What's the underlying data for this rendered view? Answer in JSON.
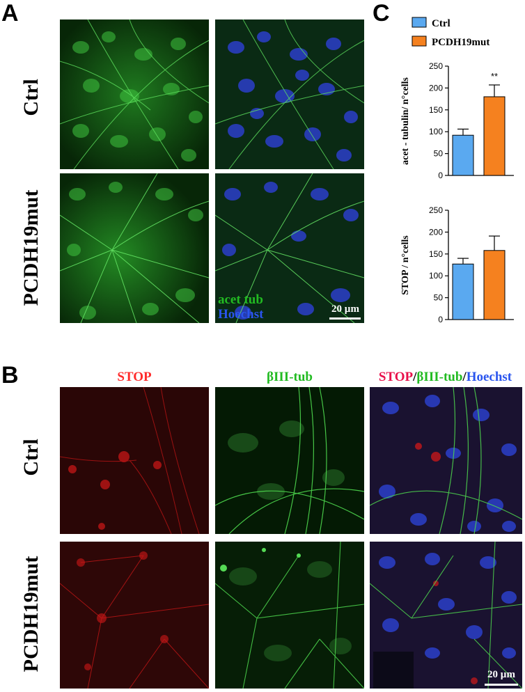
{
  "panels": {
    "a": "A",
    "b": "B",
    "c": "C"
  },
  "rows": {
    "ctrl": "Ctrl",
    "mut": "PCDH19mut"
  },
  "panel_a": {
    "overlay_line1": "acet tub",
    "overlay_line2": "Hoechst",
    "scale": "20 µm"
  },
  "panel_b": {
    "col_stop": "STOP",
    "col_tub": "βIII-tub",
    "col_merge_stop": "STOP",
    "col_merge_sep1": "/",
    "col_merge_tub": "βIII-tub",
    "col_merge_sep2": "/",
    "col_merge_hoechst": "Hoechst",
    "scale": "20 µm"
  },
  "colors": {
    "ctrl": "#5aa9f0",
    "mut": "#f5811f",
    "green_label": "#22bb22",
    "blue_label": "#2a55ee",
    "red_label": "#ff2a2a"
  },
  "chart_data": [
    {
      "type": "bar",
      "categories": [
        "Ctrl",
        "PCDH19mut"
      ],
      "values": [
        92,
        180
      ],
      "errors": [
        14,
        27
      ],
      "ylabel": "acet - tubulin/ n°cells",
      "ylim": [
        0,
        250
      ],
      "yticks": [
        "0",
        "50",
        "100",
        "150",
        "200",
        "250"
      ],
      "significance": "**",
      "legend": [
        "Ctrl",
        "PCDH19mut"
      ],
      "legend_position": "top"
    },
    {
      "type": "bar",
      "categories": [
        "Ctrl",
        "PCDH19mut"
      ],
      "values": [
        127,
        158
      ],
      "errors": [
        13,
        33
      ],
      "ylabel": "STOP / n°cells",
      "ylim": [
        0,
        250
      ],
      "yticks": [
        "0",
        "50",
        "100",
        "150",
        "200",
        "250"
      ]
    }
  ]
}
